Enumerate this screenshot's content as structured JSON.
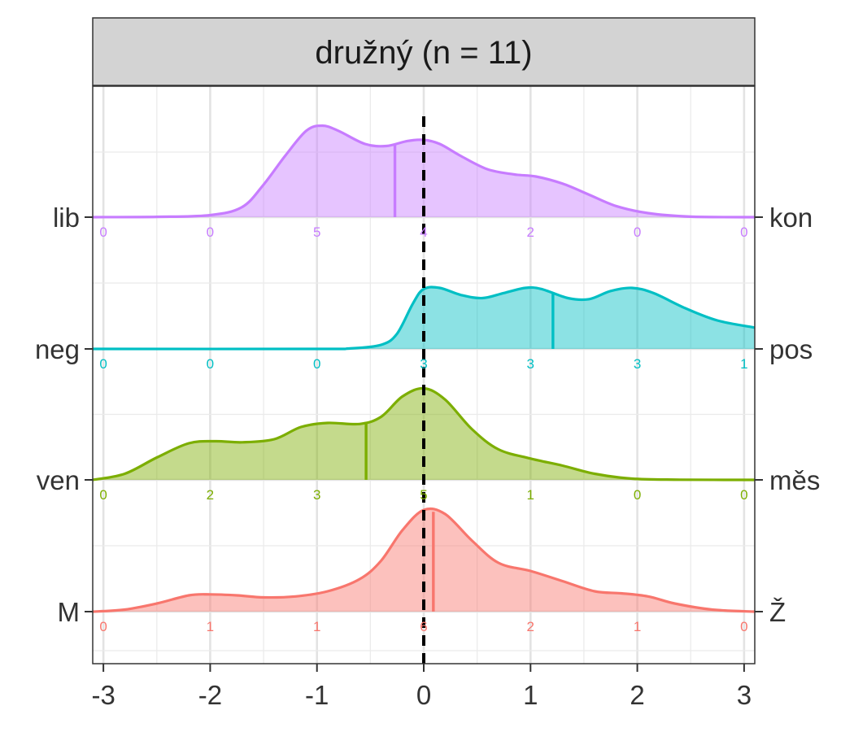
{
  "chart_data": {
    "type": "area",
    "title": "družný (n = 11)",
    "xlabel": "",
    "ylabel": "",
    "xlim": [
      -3.1,
      3.1
    ],
    "x_ticks": [
      "-3",
      "-2",
      "-1",
      "0",
      "1",
      "2",
      "3"
    ],
    "count_positions": [
      -3,
      -2,
      -1,
      0,
      1,
      2,
      3
    ],
    "reference_line_x": 0,
    "grid": true,
    "legend": "none",
    "series": [
      {
        "left_label": "lib",
        "right_label": "kon",
        "color": "#C77CFF",
        "mean": -0.27,
        "counts": [
          "0",
          "0",
          "5",
          "4",
          "2",
          "0",
          "0"
        ],
        "density": [
          [
            -3.1,
            0
          ],
          [
            -2.5,
            0.003
          ],
          [
            -2,
            0.02
          ],
          [
            -1.7,
            0.1
          ],
          [
            -1.5,
            0.32
          ],
          [
            -1.3,
            0.6
          ],
          [
            -1.1,
            0.85
          ],
          [
            -0.95,
            0.9
          ],
          [
            -0.8,
            0.85
          ],
          [
            -0.55,
            0.72
          ],
          [
            -0.35,
            0.7
          ],
          [
            -0.15,
            0.75
          ],
          [
            0,
            0.76
          ],
          [
            0.15,
            0.72
          ],
          [
            0.35,
            0.6
          ],
          [
            0.6,
            0.47
          ],
          [
            0.85,
            0.42
          ],
          [
            1.05,
            0.4
          ],
          [
            1.3,
            0.33
          ],
          [
            1.55,
            0.22
          ],
          [
            1.8,
            0.11
          ],
          [
            2.1,
            0.04
          ],
          [
            2.5,
            0.005
          ],
          [
            3.1,
            0
          ]
        ]
      },
      {
        "left_label": "neg",
        "right_label": "pos",
        "color": "#00BFC4",
        "mean": 1.21,
        "counts": [
          "0",
          "0",
          "0",
          "3",
          "3",
          "3",
          "1"
        ],
        "density": [
          [
            -3.1,
            0
          ],
          [
            -1,
            0
          ],
          [
            -0.7,
            0.004
          ],
          [
            -0.4,
            0.04
          ],
          [
            -0.25,
            0.15
          ],
          [
            -0.1,
            0.45
          ],
          [
            0,
            0.59
          ],
          [
            0.15,
            0.6
          ],
          [
            0.35,
            0.53
          ],
          [
            0.55,
            0.5
          ],
          [
            0.75,
            0.55
          ],
          [
            0.95,
            0.6
          ],
          [
            1.1,
            0.59
          ],
          [
            1.35,
            0.5
          ],
          [
            1.55,
            0.49
          ],
          [
            1.75,
            0.57
          ],
          [
            1.95,
            0.6
          ],
          [
            2.15,
            0.55
          ],
          [
            2.45,
            0.4
          ],
          [
            2.75,
            0.28
          ],
          [
            3.1,
            0.21
          ]
        ]
      },
      {
        "left_label": "ven",
        "right_label": "měs",
        "color": "#7CAE00",
        "mean": -0.54,
        "counts": [
          "0",
          "2",
          "3",
          "5",
          "1",
          "0",
          "0"
        ],
        "density": [
          [
            -3.1,
            0
          ],
          [
            -2.8,
            0.06
          ],
          [
            -2.5,
            0.22
          ],
          [
            -2.2,
            0.36
          ],
          [
            -1.95,
            0.38
          ],
          [
            -1.7,
            0.37
          ],
          [
            -1.4,
            0.4
          ],
          [
            -1.15,
            0.52
          ],
          [
            -0.9,
            0.56
          ],
          [
            -0.6,
            0.55
          ],
          [
            -0.4,
            0.62
          ],
          [
            -0.2,
            0.82
          ],
          [
            0,
            0.9
          ],
          [
            0.2,
            0.79
          ],
          [
            0.45,
            0.5
          ],
          [
            0.7,
            0.3
          ],
          [
            1,
            0.21
          ],
          [
            1.3,
            0.14
          ],
          [
            1.6,
            0.06
          ],
          [
            1.95,
            0.012
          ],
          [
            2.4,
            0.002
          ],
          [
            3.1,
            0
          ]
        ]
      },
      {
        "left_label": "M",
        "right_label": "Ž",
        "color": "#F8766D",
        "mean": 0.09,
        "counts": [
          "0",
          "1",
          "1",
          "6",
          "2",
          "1",
          "0"
        ],
        "density": [
          [
            -3.1,
            0
          ],
          [
            -2.8,
            0.02
          ],
          [
            -2.5,
            0.08
          ],
          [
            -2.2,
            0.16
          ],
          [
            -2,
            0.17
          ],
          [
            -1.75,
            0.16
          ],
          [
            -1.5,
            0.14
          ],
          [
            -1.2,
            0.15
          ],
          [
            -0.9,
            0.2
          ],
          [
            -0.6,
            0.32
          ],
          [
            -0.4,
            0.5
          ],
          [
            -0.2,
            0.8
          ],
          [
            0,
            1
          ],
          [
            0.2,
            0.96
          ],
          [
            0.45,
            0.7
          ],
          [
            0.7,
            0.48
          ],
          [
            1,
            0.4
          ],
          [
            1.3,
            0.3
          ],
          [
            1.6,
            0.2
          ],
          [
            1.85,
            0.18
          ],
          [
            2.1,
            0.15
          ],
          [
            2.35,
            0.08
          ],
          [
            2.7,
            0.02
          ],
          [
            3.1,
            0
          ]
        ]
      }
    ]
  }
}
